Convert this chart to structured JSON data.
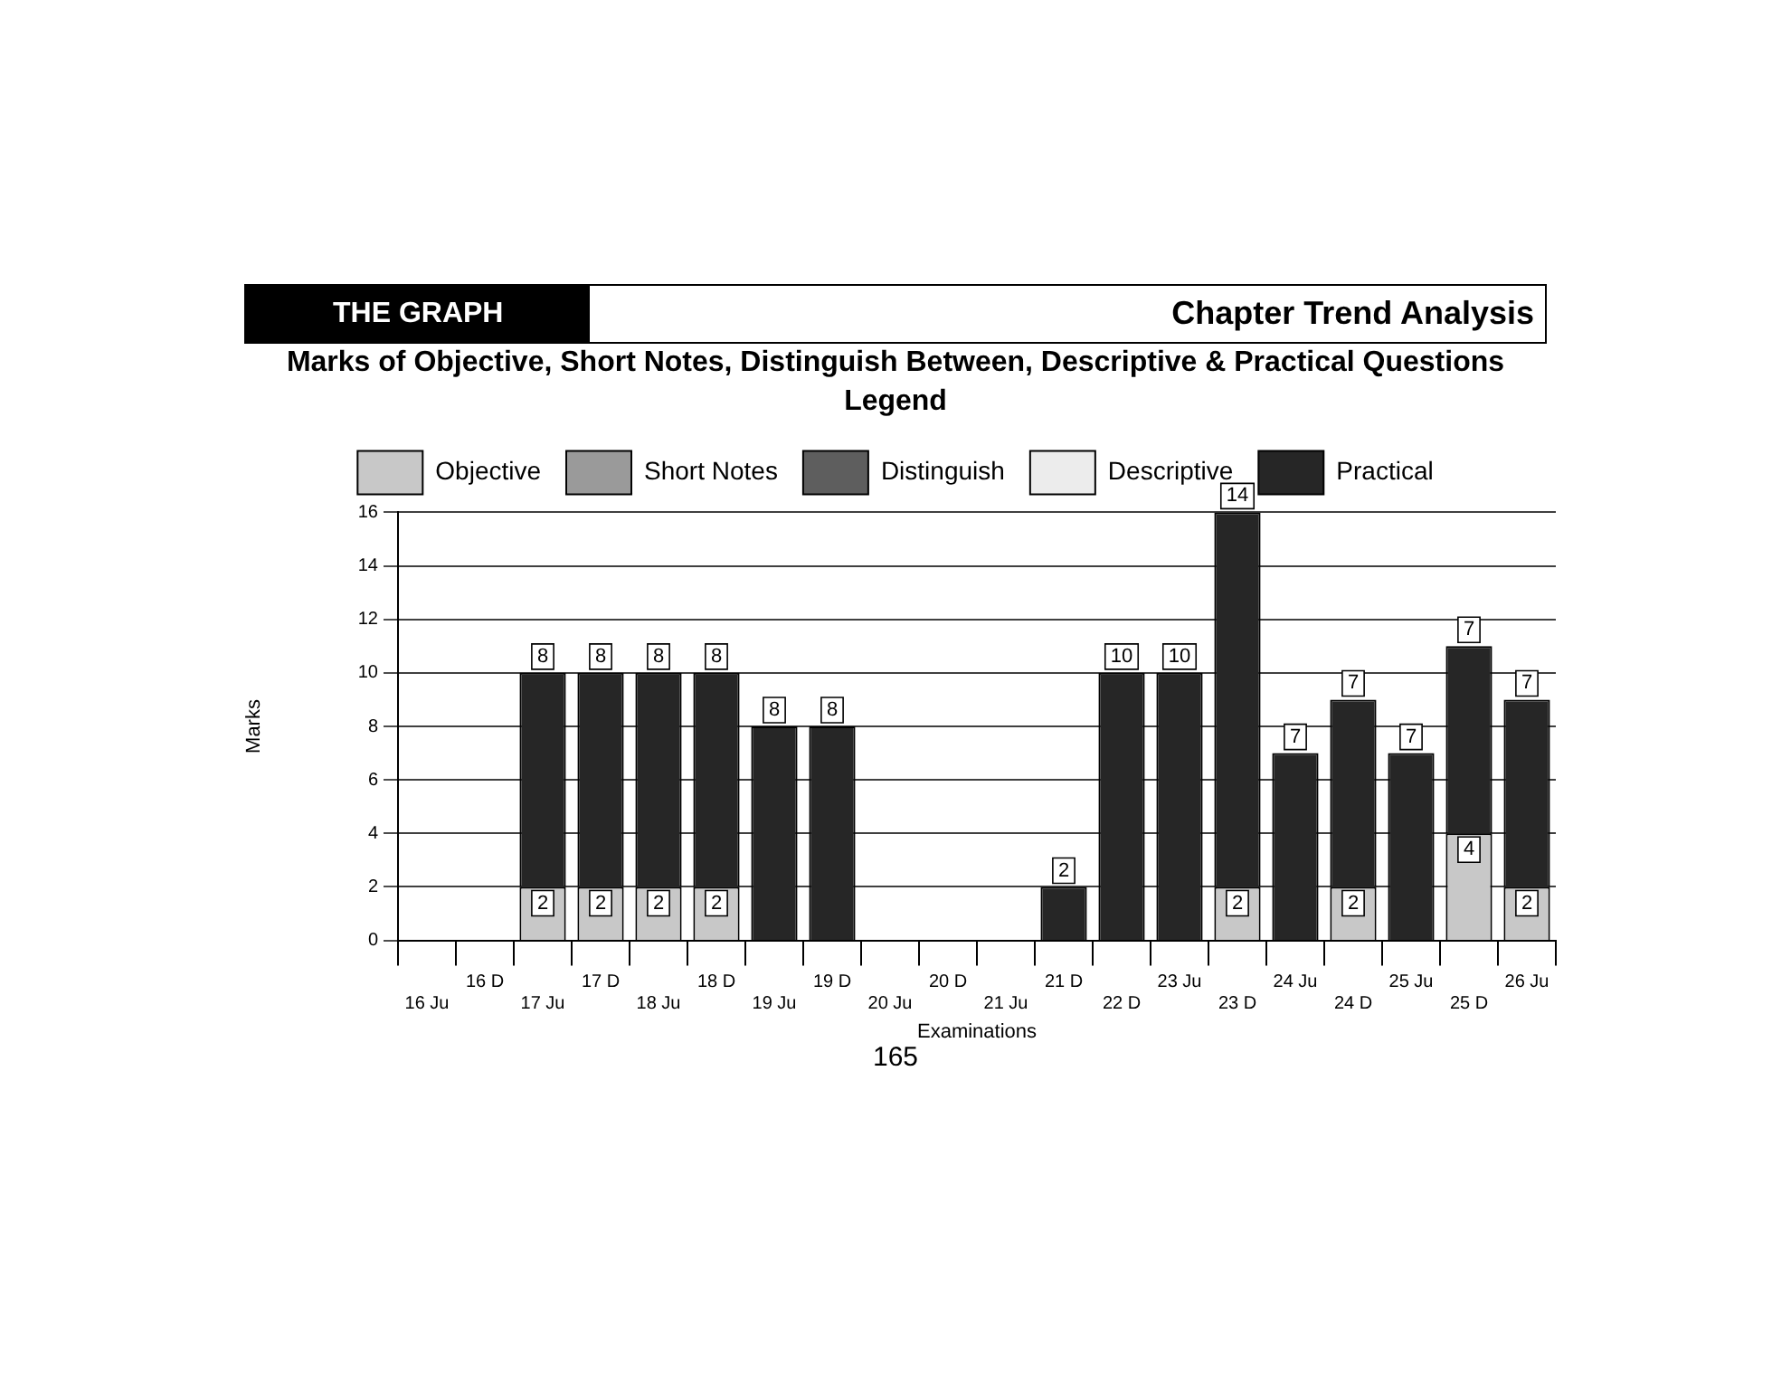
{
  "chart_data": {
    "type": "bar",
    "stacked": true,
    "title": "Marks of Objective, Short Notes, Distinguish Between, Descriptive & Practical Questions",
    "legend_title": "Legend",
    "legend": "top",
    "xlabel": "Examinations",
    "ylabel": "Marks",
    "grid": "y",
    "data_labels": true,
    "annotations": [
      "THE GRAPH",
      "Chapter Trend Analysis",
      "165"
    ],
    "categories": [
      "16 Ju",
      "16 D",
      "17 Ju",
      "17 D",
      "18 Ju",
      "18 D",
      "19 Ju",
      "19 D",
      "20 Ju",
      "20 D",
      "21 Ju",
      "21 D",
      "22 D",
      "23 Ju",
      "23 D",
      "24 Ju",
      "24 D",
      "25 Ju",
      "25 D",
      "26 Ju"
    ],
    "ylim": [
      0,
      16
    ],
    "yticks": [
      0,
      2,
      4,
      6,
      8,
      10,
      12,
      14,
      16
    ],
    "series": [
      {
        "name": "Objective",
        "color": "#c8c8c8",
        "values": [
          null,
          null,
          2,
          2,
          2,
          2,
          null,
          null,
          null,
          null,
          null,
          null,
          null,
          null,
          2,
          null,
          2,
          null,
          4,
          2
        ]
      },
      {
        "name": "Short Notes",
        "color": "#9a9a9a",
        "values": [
          null,
          null,
          null,
          null,
          null,
          null,
          null,
          null,
          null,
          null,
          null,
          null,
          null,
          null,
          null,
          null,
          null,
          null,
          null,
          null
        ]
      },
      {
        "name": "Distinguish",
        "color": "#5e5e5e",
        "values": [
          null,
          null,
          null,
          null,
          null,
          null,
          null,
          null,
          null,
          null,
          null,
          null,
          null,
          null,
          null,
          null,
          null,
          null,
          null,
          null
        ]
      },
      {
        "name": "Descriptive",
        "color": "#ececec",
        "values": [
          null,
          null,
          null,
          null,
          null,
          null,
          null,
          null,
          null,
          null,
          null,
          null,
          null,
          null,
          null,
          null,
          null,
          null,
          null,
          null
        ]
      },
      {
        "name": "Practical",
        "color": "#262626",
        "values": [
          null,
          null,
          8,
          8,
          8,
          8,
          8,
          8,
          null,
          null,
          null,
          2,
          10,
          10,
          14,
          7,
          7,
          7,
          7,
          7
        ]
      }
    ]
  }
}
